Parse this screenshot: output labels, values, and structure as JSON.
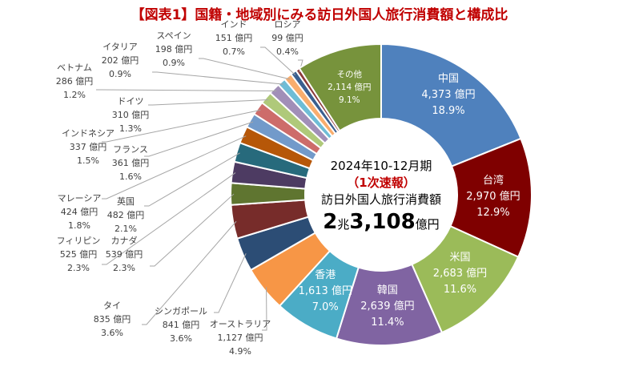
{
  "title": "【図表1】国籍・地域別にみる訪日外国人旅行消費額と構成比",
  "center": {
    "period": "2024年10-12月期",
    "status": "（1次速報）",
    "label": "訪日外国人旅行消費額",
    "total_a": "2",
    "total_b": "兆",
    "total_c": "3,108",
    "total_d": "億円"
  },
  "chart_data": {
    "type": "pie",
    "donut": true,
    "unit": "億円",
    "title": "【図表1】国籍・地域別にみる訪日外国人旅行消費額と構成比",
    "slices": [
      {
        "name": "中国",
        "value": 4373,
        "value_label": "4,373 億円",
        "pct": "18.9%",
        "color": "#4f81bd"
      },
      {
        "name": "台湾",
        "value": 2970,
        "value_label": "2,970 億円",
        "pct": "12.9%",
        "color": "#7f0000"
      },
      {
        "name": "米国",
        "value": 2683,
        "value_label": "2,683 億円",
        "pct": "11.6%",
        "color": "#9bbb59"
      },
      {
        "name": "韓国",
        "value": 2639,
        "value_label": "2,639 億円",
        "pct": "11.4%",
        "color": "#8064a2"
      },
      {
        "name": "香港",
        "value": 1613,
        "value_label": "1,613 億円",
        "pct": "7.0%",
        "color": "#4bacc6"
      },
      {
        "name": "オーストラリア",
        "value": 1127,
        "value_label": "1,127 億円",
        "pct": "4.9%",
        "color": "#f79646"
      },
      {
        "name": "シンガポール",
        "value": 841,
        "value_label": "841 億円",
        "pct": "3.6%",
        "color": "#2c4d75"
      },
      {
        "name": "タイ",
        "value": 835,
        "value_label": "835 億円",
        "pct": "3.6%",
        "color": "#772c2a"
      },
      {
        "name": "カナダ",
        "value": 539,
        "value_label": "539 億円",
        "pct": "2.3%",
        "color": "#5f7530"
      },
      {
        "name": "フィリピン",
        "value": 525,
        "value_label": "525 億円",
        "pct": "2.3%",
        "color": "#4d3b62"
      },
      {
        "name": "英国",
        "value": 482,
        "value_label": "482 億円",
        "pct": "2.1%",
        "color": "#276a7c"
      },
      {
        "name": "マレーシア",
        "value": 424,
        "value_label": "424 億円",
        "pct": "1.8%",
        "color": "#b65708"
      },
      {
        "name": "フランス",
        "value": 361,
        "value_label": "361 億円",
        "pct": "1.6%",
        "color": "#729aca"
      },
      {
        "name": "インドネシア",
        "value": 337,
        "value_label": "337 億円",
        "pct": "1.5%",
        "color": "#cd6c6a"
      },
      {
        "name": "ドイツ",
        "value": 310,
        "value_label": "310 億円",
        "pct": "1.3%",
        "color": "#afc97a"
      },
      {
        "name": "ベトナム",
        "value": 286,
        "value_label": "286 億円",
        "pct": "1.2%",
        "color": "#a18fb8"
      },
      {
        "name": "イタリア",
        "value": 202,
        "value_label": "202 億円",
        "pct": "0.9%",
        "color": "#6fbdd6"
      },
      {
        "name": "スペイン",
        "value": 198,
        "value_label": "198 億円",
        "pct": "0.9%",
        "color": "#f9ad6d"
      },
      {
        "name": "インド",
        "value": 151,
        "value_label": "151 億円",
        "pct": "0.7%",
        "color": "#3a5f8f"
      },
      {
        "name": "ロシア",
        "value": 99,
        "value_label": "99 億円",
        "pct": "0.4%",
        "color": "#8b3a3a"
      },
      {
        "name": "その他",
        "value": 2114,
        "value_label": "2,114 億円",
        "pct": "9.1%",
        "color": "#77933c"
      }
    ]
  }
}
